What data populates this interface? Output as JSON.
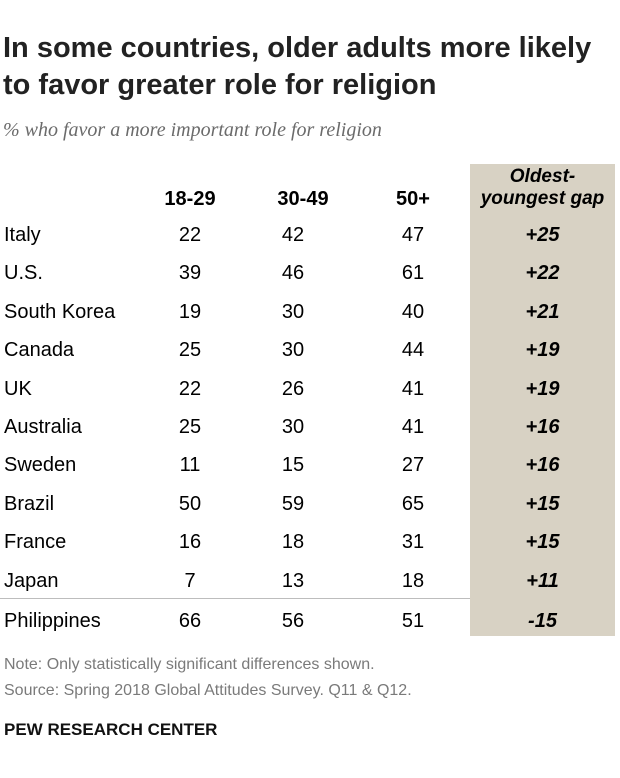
{
  "title": "In some countries, older adults more likely to favor greater role for religion",
  "subtitle": "% who favor a more important role for religion",
  "highlight_color": "#d8d2c4",
  "chart_data": {
    "type": "table",
    "columns": [
      "18-29",
      "30-49",
      "50+"
    ],
    "gap_header": [
      "Oldest-",
      "youngest gap"
    ],
    "rows": [
      {
        "country": "Italy",
        "values": [
          "22",
          "42",
          "47"
        ],
        "gap": "+25"
      },
      {
        "country": "U.S.",
        "values": [
          "39",
          "46",
          "61"
        ],
        "gap": "+22"
      },
      {
        "country": "South Korea",
        "values": [
          "19",
          "30",
          "40"
        ],
        "gap": "+21"
      },
      {
        "country": "Canada",
        "values": [
          "25",
          "30",
          "44"
        ],
        "gap": "+19"
      },
      {
        "country": "UK",
        "values": [
          "22",
          "26",
          "41"
        ],
        "gap": "+19"
      },
      {
        "country": "Australia",
        "values": [
          "25",
          "30",
          "41"
        ],
        "gap": "+16"
      },
      {
        "country": "Sweden",
        "values": [
          "11",
          "15",
          "27"
        ],
        "gap": "+16"
      },
      {
        "country": "Brazil",
        "values": [
          "50",
          "59",
          "65"
        ],
        "gap": "+15"
      },
      {
        "country": "France",
        "values": [
          "16",
          "18",
          "31"
        ],
        "gap": "+15"
      },
      {
        "country": "Japan",
        "values": [
          "7",
          "13",
          "18"
        ],
        "gap": "+11"
      },
      {
        "country": "Philippines",
        "values": [
          "66",
          "56",
          "51"
        ],
        "gap": "-15"
      }
    ]
  },
  "note": "Note: Only statistically significant differences shown.",
  "source": "Source: Spring 2018 Global Attitudes Survey. Q11 & Q12.",
  "footer": "PEW RESEARCH CENTER"
}
